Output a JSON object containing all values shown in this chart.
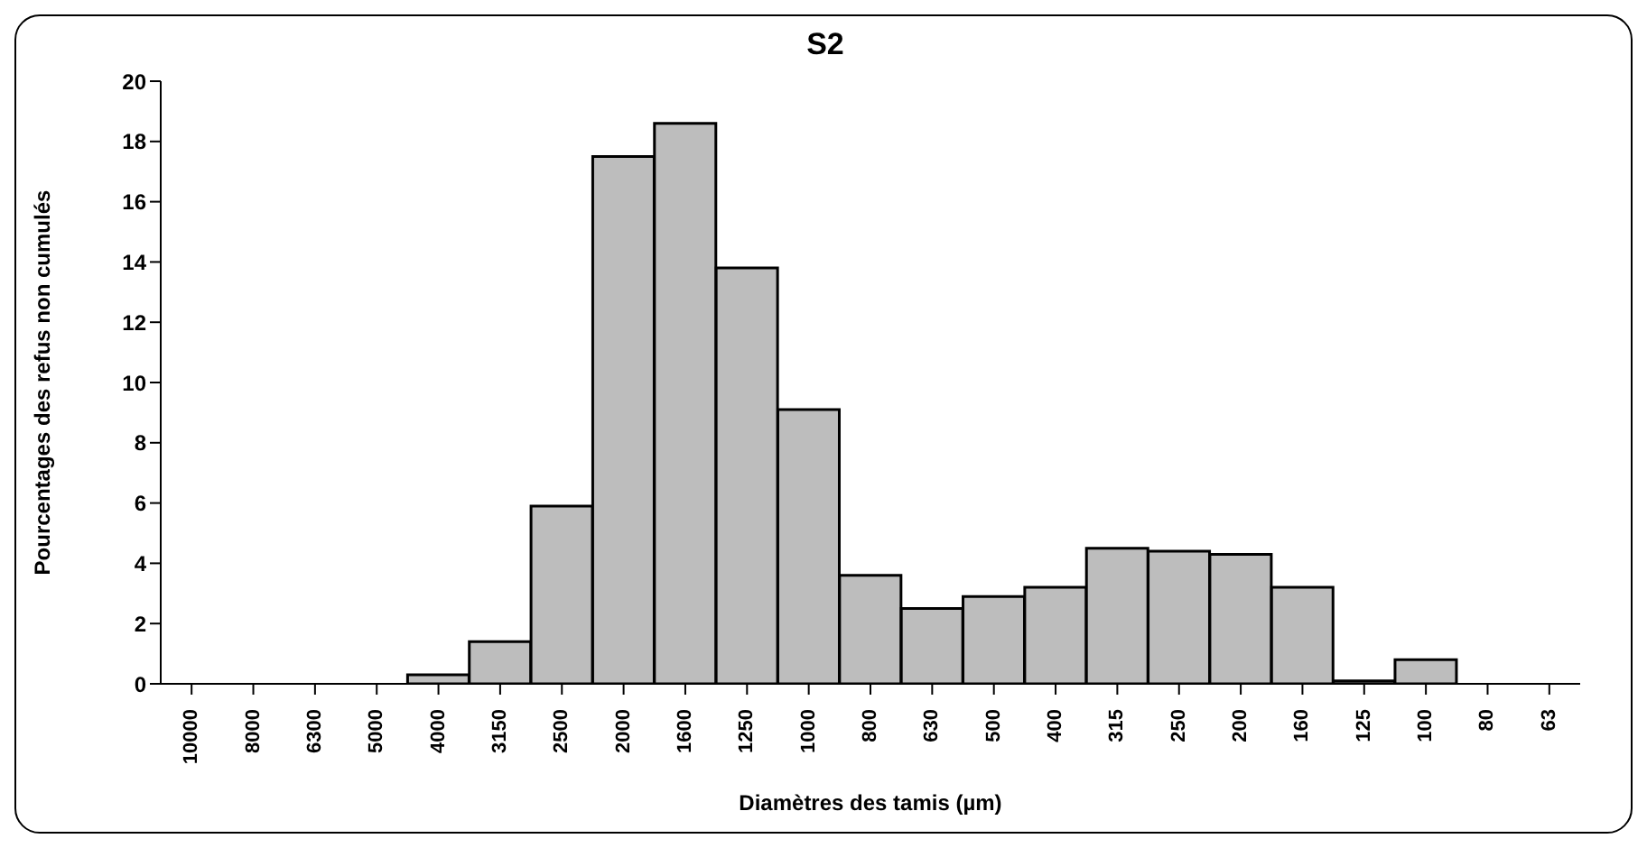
{
  "chart_data": {
    "type": "bar",
    "title": "S2",
    "xlabel": "Diamètres des tamis (µm)",
    "ylabel": "Pourcentages des refus non cumulés",
    "categories": [
      "10000",
      "8000",
      "6300",
      "5000",
      "4000",
      "3150",
      "2500",
      "2000",
      "1600",
      "1250",
      "1000",
      "800",
      "630",
      "500",
      "400",
      "315",
      "250",
      "200",
      "160",
      "125",
      "100",
      "80",
      "63"
    ],
    "values": [
      0,
      0,
      0,
      0,
      0.3,
      1.4,
      5.9,
      17.5,
      18.6,
      13.8,
      9.1,
      3.6,
      2.5,
      2.9,
      3.2,
      4.5,
      4.4,
      4.3,
      3.2,
      0.1,
      0.8,
      0,
      0
    ],
    "color": "#bdbdbd",
    "ylim": [
      0,
      20
    ],
    "yticks": [
      0,
      2,
      4,
      6,
      8,
      10,
      12,
      14,
      16,
      18,
      20
    ]
  }
}
